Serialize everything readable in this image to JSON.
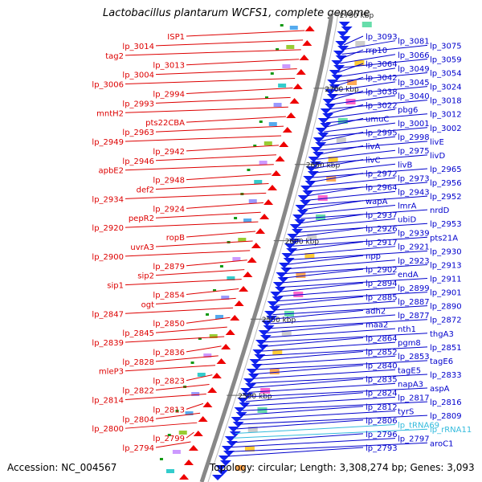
{
  "title": "Lactobacillus plantarum WCFS1, complete genome",
  "accession": "Accession: NC_004567",
  "topology": "Topology: circular; Length: 3,308,274 bp; Genes: 3,093",
  "colors": {
    "left_label": "#dd0000",
    "right_label": "#0000cc",
    "rna_label": "#33bbdd",
    "backbone": "#888888",
    "forward_arrow": "#ee0000",
    "reverse_arrow": "#1122ee"
  },
  "ticks": [
    {
      "label": "2750 kbp",
      "pos": 0.005
    },
    {
      "label": "2700 kbp",
      "pos": 0.17
    },
    {
      "label": "2650 kbp",
      "pos": 0.34
    },
    {
      "label": "2600 kbp",
      "pos": 0.51
    },
    {
      "label": "2550 kbp",
      "pos": 0.685
    },
    {
      "label": "2500 kbp",
      "pos": 0.855
    }
  ],
  "left_labels": [
    "ISP1",
    "lp_3014",
    "tag2",
    "lp_3013",
    "lp_3004",
    "lp_3006",
    "lp_2994",
    "lp_2993",
    "mntH2",
    "pts22CBA",
    "lp_2963",
    "lp_2949",
    "lp_2942",
    "lp_2946",
    "apbE2",
    "lp_2948",
    "def2",
    "lp_2934",
    "lp_2924",
    "pepR2",
    "lp_2920",
    "ropB",
    "uvrA3",
    "lp_2900",
    "lp_2879",
    "sip2",
    "sip1",
    "lp_2854",
    "ogt",
    "lp_2847",
    "lp_2850",
    "lp_2845",
    "lp_2839",
    "lp_2836",
    "lp_2828",
    "mleP3",
    "lp_2823",
    "lp_2822",
    "lp_2814",
    "lp_2813",
    "lp_2804",
    "lp_2800",
    "lp_2799",
    "lp_2794"
  ],
  "right_labels": [
    "lp_3093",
    "lp_3081",
    "lp_3075",
    "rrp10",
    "lp_3066",
    "lp_3059",
    "lp_3064",
    "lp_3049",
    "lp_3054",
    "lp_3042",
    "lp_3045",
    "lp_3024",
    "lp_3038",
    "lp_3040",
    "lp_3018",
    "lp_3022",
    "pbg6",
    "lp_3012",
    "umuC",
    "lp_3001",
    "lp_3002",
    "lp_2995",
    "lp_2998",
    "livE",
    "livA",
    "lp_2975",
    "livD",
    "livC",
    "livB",
    "lp_2965",
    "lp_2972",
    "lp_2973",
    "lp_2956",
    "lp_2964",
    "lp_2943",
    "lp_2952",
    "wapA",
    "lmrA",
    "nrdD",
    "lp_2937",
    "ubiD",
    "lp_2953",
    "lp_2926",
    "lp_2939",
    "pts21A",
    "lp_2917",
    "lp_2921",
    "lp_2930",
    "npp",
    "lp_2923",
    "lp_2913",
    "lp_2902",
    "endA",
    "lp_2911",
    "lp_2894",
    "lp_2899",
    "lp_2901",
    "lp_2885",
    "lp_2887",
    "lp_2890",
    "adh2",
    "lp_2877",
    "lp_2872",
    "maa2",
    "nth1",
    "thgA3",
    "lp_2864",
    "pgm8",
    "lp_2851",
    "lp_2852",
    "lp_2853",
    "tagE6",
    "lp_2840",
    "tagE5",
    "lp_2833",
    "lp_2835",
    "napA3",
    "aspA",
    "lp_2824",
    "lp_2817",
    "lp_2816",
    "lp_2812",
    "tyrS",
    "lp_2809",
    "lp_2806",
    "lp_tRNA69",
    "lp_rRNA11",
    "lp_2796",
    "lp_2797",
    "aroC1",
    "lp_2793"
  ]
}
